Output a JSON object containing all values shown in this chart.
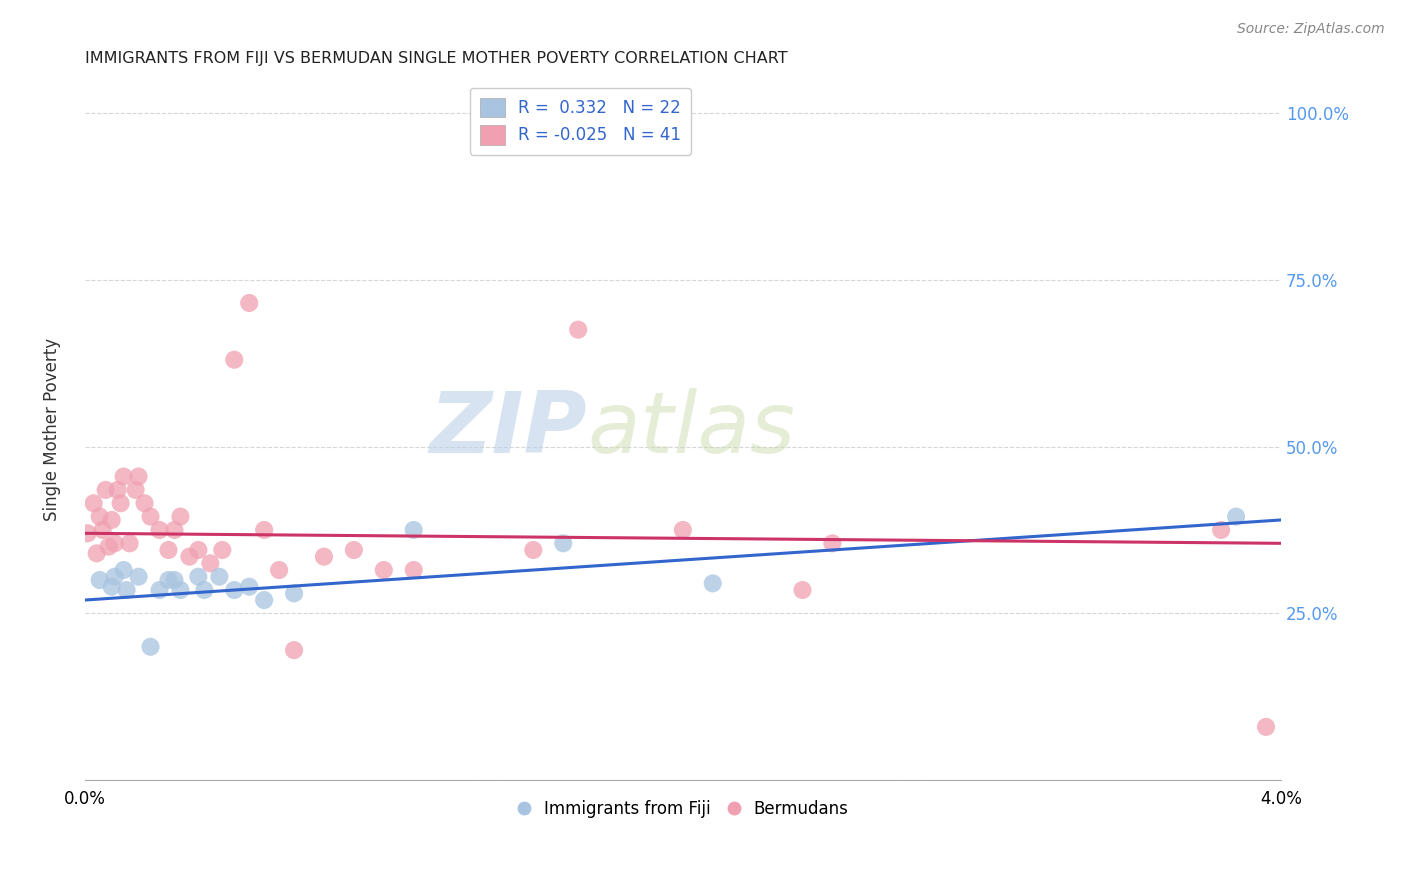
{
  "title": "IMMIGRANTS FROM FIJI VS BERMUDAN SINGLE MOTHER POVERTY CORRELATION CHART",
  "source": "Source: ZipAtlas.com",
  "ylabel": "Single Mother Poverty",
  "xlim": [
    0.0,
    0.04
  ],
  "ylim": [
    0.0,
    1.05
  ],
  "yticks": [
    0.0,
    0.25,
    0.5,
    0.75,
    1.0
  ],
  "ytick_labels": [
    "",
    "25.0%",
    "50.0%",
    "75.0%",
    "100.0%"
  ],
  "xticks": [
    0.0,
    0.01,
    0.02,
    0.03,
    0.04
  ],
  "xtick_labels": [
    "0.0%",
    "",
    "",
    "",
    "4.0%"
  ],
  "fiji_R": 0.332,
  "fiji_N": 22,
  "bermuda_R": -0.025,
  "bermuda_N": 41,
  "fiji_color": "#a8c4e0",
  "bermuda_color": "#f0a0b0",
  "fiji_line_color": "#3366cc",
  "bermuda_line_color": "#cc3366",
  "watermark_zip": "ZIP",
  "watermark_atlas": "atlas",
  "fiji_x": [
    0.0005,
    0.0009,
    0.001,
    0.0013,
    0.0014,
    0.0018,
    0.0022,
    0.0025,
    0.0028,
    0.003,
    0.0032,
    0.0038,
    0.004,
    0.0045,
    0.005,
    0.0055,
    0.006,
    0.007,
    0.011,
    0.016,
    0.021,
    0.0385
  ],
  "fiji_y": [
    0.3,
    0.29,
    0.305,
    0.315,
    0.285,
    0.305,
    0.2,
    0.285,
    0.3,
    0.3,
    0.285,
    0.305,
    0.285,
    0.305,
    0.285,
    0.29,
    0.27,
    0.28,
    0.375,
    0.355,
    0.295,
    0.395
  ],
  "bermuda_x": [
    0.0001,
    0.0003,
    0.0004,
    0.0005,
    0.0006,
    0.0007,
    0.0008,
    0.0009,
    0.001,
    0.0011,
    0.0012,
    0.0013,
    0.0015,
    0.0017,
    0.0018,
    0.002,
    0.0022,
    0.0025,
    0.0028,
    0.003,
    0.0032,
    0.0035,
    0.0038,
    0.0042,
    0.0046,
    0.005,
    0.0055,
    0.006,
    0.0065,
    0.007,
    0.008,
    0.009,
    0.01,
    0.011,
    0.015,
    0.0165,
    0.02,
    0.024,
    0.025,
    0.038,
    0.0395
  ],
  "bermuda_y": [
    0.37,
    0.415,
    0.34,
    0.395,
    0.375,
    0.435,
    0.35,
    0.39,
    0.355,
    0.435,
    0.415,
    0.455,
    0.355,
    0.435,
    0.455,
    0.415,
    0.395,
    0.375,
    0.345,
    0.375,
    0.395,
    0.335,
    0.345,
    0.325,
    0.345,
    0.63,
    0.715,
    0.375,
    0.315,
    0.195,
    0.335,
    0.345,
    0.315,
    0.315,
    0.345,
    0.675,
    0.375,
    0.285,
    0.355,
    0.375,
    0.08
  ],
  "fiji_trendline_x": [
    0.0,
    0.04
  ],
  "fiji_trendline_y": [
    0.27,
    0.39
  ],
  "bermuda_trendline_x": [
    0.0,
    0.04
  ],
  "bermuda_trendline_y": [
    0.37,
    0.355
  ]
}
